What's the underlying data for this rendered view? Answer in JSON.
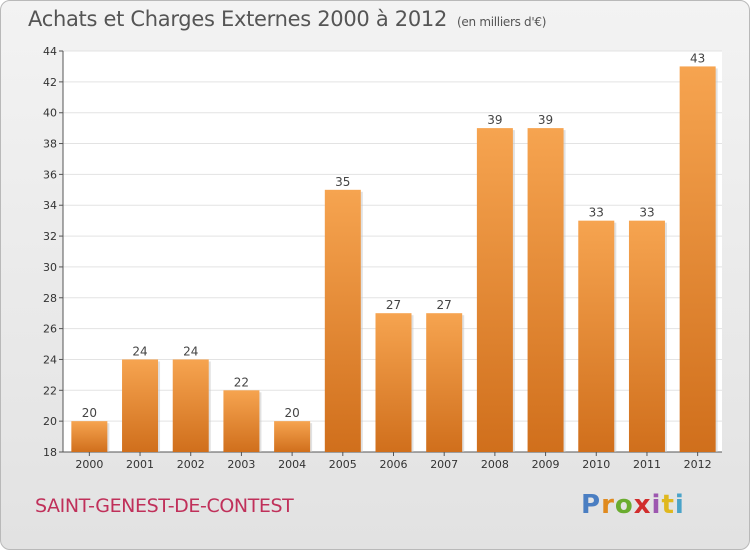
{
  "header": {
    "title": "Achats et Charges Externes 2000 à 2012",
    "unit": "(en milliers d'€)"
  },
  "footer": {
    "location": "SAINT-GENEST-DE-CONTEST",
    "brand_letters": [
      {
        "ch": "P",
        "color": "#4a7ec2"
      },
      {
        "ch": "r",
        "color": "#e08a1e"
      },
      {
        "ch": "o",
        "color": "#6aac2f"
      },
      {
        "ch": "x",
        "color": "#d12d2d"
      },
      {
        "ch": "i",
        "color": "#9d57b0"
      },
      {
        "ch": "t",
        "color": "#e0b81e"
      },
      {
        "ch": "i",
        "color": "#4aa3c9"
      }
    ]
  },
  "colors": {
    "bar_light": "#f6a450",
    "bar_dark": "#d06f1c",
    "accent": "#c0305a"
  },
  "chart_data": {
    "type": "bar",
    "title": "Achats et Charges Externes 2000 à 2012",
    "subtitle": "(en milliers d'€)",
    "categories": [
      "2000",
      "2001",
      "2002",
      "2003",
      "2004",
      "2005",
      "2006",
      "2007",
      "2008",
      "2009",
      "2010",
      "2011",
      "2012"
    ],
    "values": [
      20,
      24,
      24,
      22,
      20,
      35,
      27,
      27,
      39,
      39,
      33,
      33,
      43
    ],
    "ylim": [
      18,
      44
    ],
    "yticks": [
      18,
      20,
      22,
      24,
      26,
      28,
      30,
      32,
      34,
      36,
      38,
      40,
      42,
      44
    ],
    "grid": true,
    "legend": "none"
  }
}
